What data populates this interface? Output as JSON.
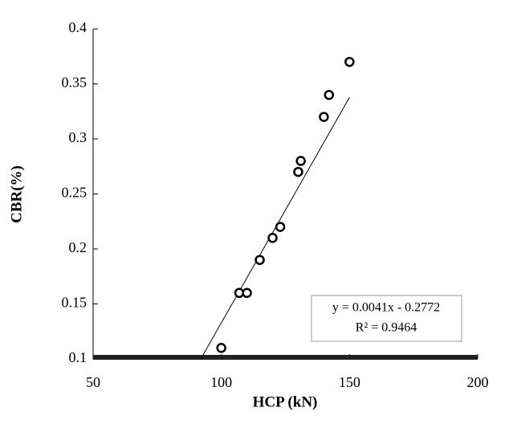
{
  "chart_data": {
    "type": "scatter",
    "x_label": "HCP (kN)",
    "y_label": "CBR(%)",
    "x": [
      100,
      107,
      110,
      115,
      120,
      123,
      130,
      131,
      140,
      142,
      150
    ],
    "values": [
      0.11,
      0.16,
      0.16,
      0.19,
      0.21,
      0.22,
      0.27,
      0.28,
      0.32,
      0.34,
      0.37
    ],
    "xlim": [
      50,
      200
    ],
    "xticks": [
      50,
      100,
      150,
      200
    ],
    "ylim": [
      0.1,
      0.4
    ],
    "yticks": [
      0.1,
      0.15,
      0.2,
      0.25,
      0.3,
      0.35,
      0.4
    ],
    "trendline": {
      "slope": 0.0041,
      "intercept": -0.2772,
      "equation": "y = 0.0041x - 0.2772",
      "r_squared": "R² = 0.9464"
    },
    "color": "#000000"
  }
}
